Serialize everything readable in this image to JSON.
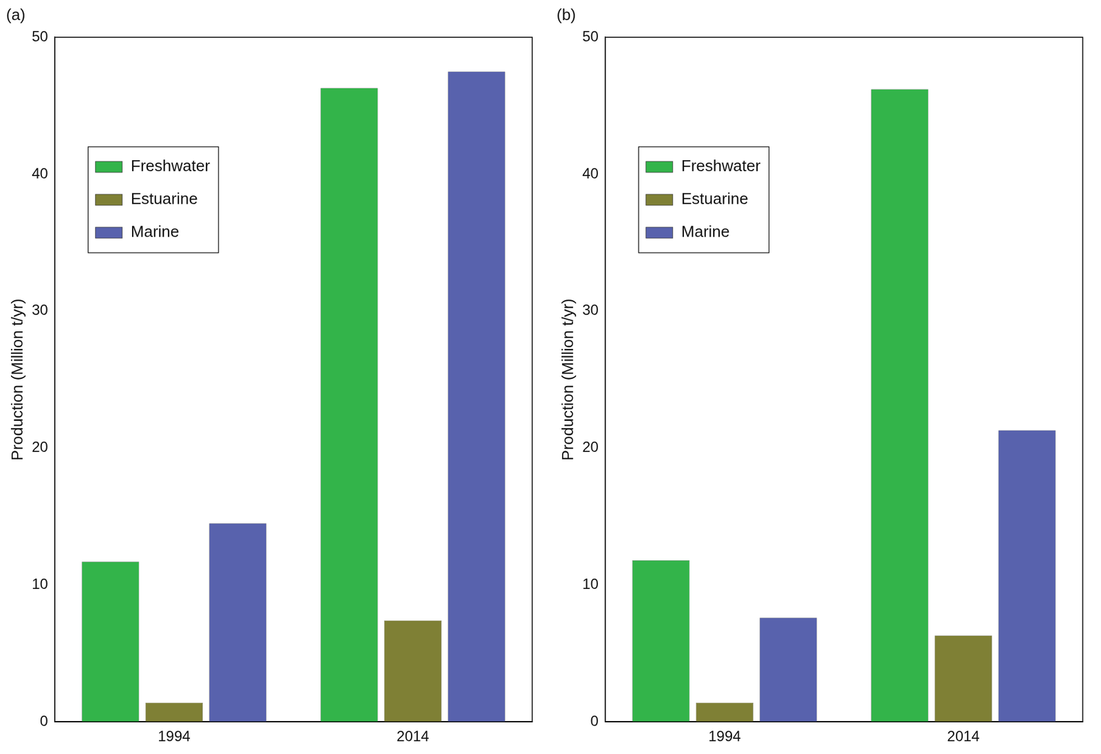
{
  "chart_data": [
    {
      "type": "bar",
      "title": "(a)",
      "y_label": "Production (Million t/yr)",
      "categories": [
        "1994",
        "2014"
      ],
      "series": [
        {
          "name": "Freshwater",
          "color": "#33b44a",
          "values": [
            11.7,
            46.3
          ]
        },
        {
          "name": "Estuarine",
          "color": "#7f8035",
          "values": [
            1.4,
            7.4
          ]
        },
        {
          "name": "Marine",
          "color": "#5862ad",
          "values": [
            14.5,
            47.5
          ]
        }
      ],
      "ylim": [
        0,
        50
      ],
      "yticks": [
        0,
        10,
        20,
        30,
        40,
        50
      ],
      "grid": false,
      "legend": "upper left"
    },
    {
      "type": "bar",
      "title": "(b)",
      "y_label": "Production (Million t/yr)",
      "categories": [
        "1994",
        "2014"
      ],
      "series": [
        {
          "name": "Freshwater",
          "color": "#33b44a",
          "values": [
            11.8,
            46.2
          ]
        },
        {
          "name": "Estuarine",
          "color": "#7f8035",
          "values": [
            1.4,
            6.3
          ]
        },
        {
          "name": "Marine",
          "color": "#5862ad",
          "values": [
            7.6,
            21.3
          ]
        }
      ],
      "ylim": [
        0,
        50
      ],
      "yticks": [
        0,
        10,
        20,
        30,
        40,
        50
      ],
      "grid": false,
      "legend": "upper left"
    }
  ]
}
